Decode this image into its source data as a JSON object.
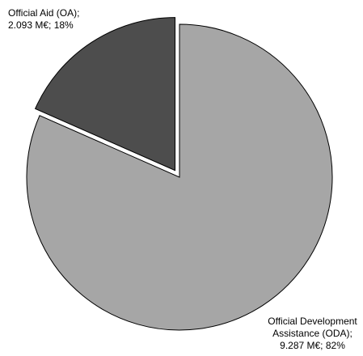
{
  "chart_data": {
    "type": "pie",
    "title": "",
    "unit": "M€",
    "slices": [
      {
        "name": "Official Development Assistance (ODA)",
        "value": 9287,
        "percent": 82,
        "color": "#a6a6a6",
        "exploded": false,
        "label_lines": [
          "Official Development",
          "Assistance (ODA);",
          "9.287 M€; 82%"
        ]
      },
      {
        "name": "Official Aid (OA)",
        "value": 2093,
        "percent": 18,
        "color": "#4d4d4d",
        "exploded": true,
        "label_lines": [
          "Official Aid (OA);",
          "2.093 M€; 18%"
        ]
      }
    ]
  }
}
